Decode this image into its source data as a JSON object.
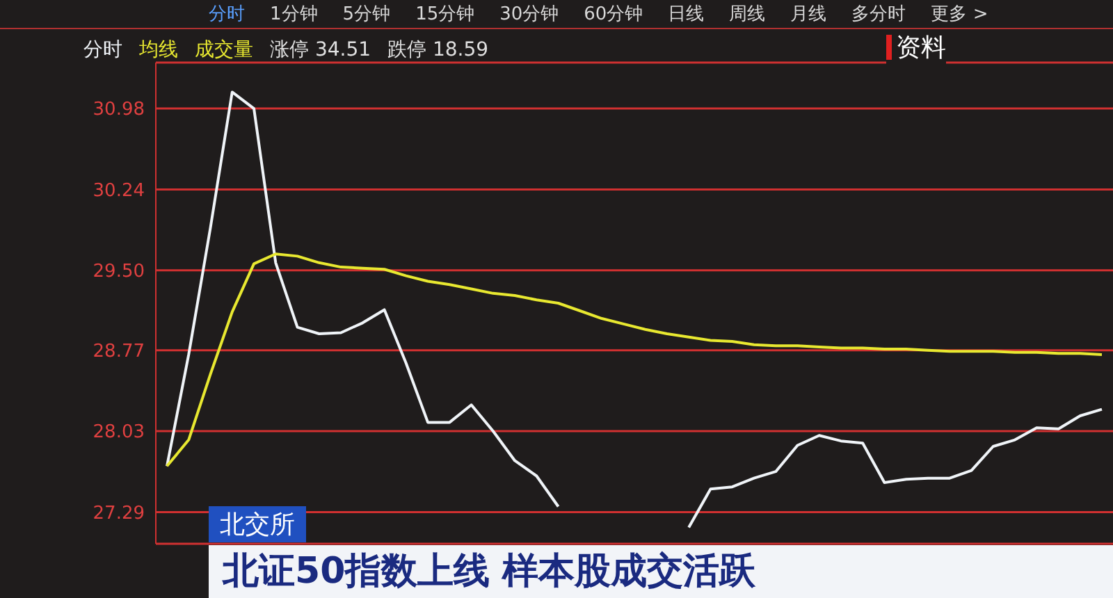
{
  "chart_data": {
    "type": "line",
    "title": "北证50指数上线 样本股成交活跃",
    "subtitle": "北交所",
    "annotations": [
      "分时",
      "1分钟",
      "5分钟",
      "15分钟",
      "30分钟",
      "60分钟",
      "日线",
      "周线",
      "月线",
      "多分时",
      "更多 >",
      "成交量",
      "涨停 34.51",
      "跌停 18.59",
      "资料"
    ],
    "categories": [
      null,
      null,
      null,
      null,
      null,
      null,
      null,
      null,
      null,
      null,
      null,
      null,
      null,
      null,
      null,
      null,
      null,
      null,
      null,
      null,
      null,
      null,
      null,
      null,
      null,
      null,
      null,
      null,
      null,
      null,
      null,
      null,
      null,
      null,
      null,
      null,
      null,
      null,
      null,
      null,
      null,
      null,
      null,
      null
    ],
    "series": [
      {
        "name": "分时",
        "color": "#f0f4f8",
        "values": [
          27.71,
          28.73,
          29.89,
          31.13,
          30.98,
          29.57,
          28.98,
          28.92,
          28.93,
          29.02,
          29.14,
          28.65,
          28.11,
          28.11,
          28.27,
          28.03,
          27.76,
          27.62,
          27.34,
          null,
          null,
          null,
          null,
          null,
          27.15,
          27.5,
          27.52,
          27.6,
          27.66,
          27.9,
          27.99,
          27.94,
          27.92,
          27.56,
          27.59,
          27.6,
          27.6,
          27.67,
          27.89,
          27.95,
          28.06,
          28.05,
          28.17,
          28.23
        ]
      },
      {
        "name": "均线",
        "color": "#e8e830",
        "values": [
          27.71,
          27.95,
          28.55,
          29.12,
          29.56,
          29.65,
          29.63,
          29.57,
          29.53,
          29.52,
          29.51,
          29.45,
          29.4,
          29.37,
          29.33,
          29.29,
          29.27,
          29.23,
          29.2,
          29.13,
          29.06,
          29.01,
          28.96,
          28.92,
          28.89,
          28.86,
          28.85,
          28.82,
          28.81,
          28.81,
          28.8,
          28.79,
          28.79,
          28.78,
          28.78,
          28.77,
          28.76,
          28.76,
          28.76,
          28.75,
          28.75,
          28.74,
          28.74,
          28.73
        ]
      }
    ],
    "ylim": [
      27.0,
      31.4
    ],
    "yticks": [
      27.29,
      28.03,
      28.77,
      {
        "value": 29.5,
        "label": "29.50"
      },
      30.24,
      30.98
    ],
    "grid": "y",
    "legend": "top left",
    "tick_labels": "y",
    "marker": "none",
    "line_style": "solid"
  }
}
